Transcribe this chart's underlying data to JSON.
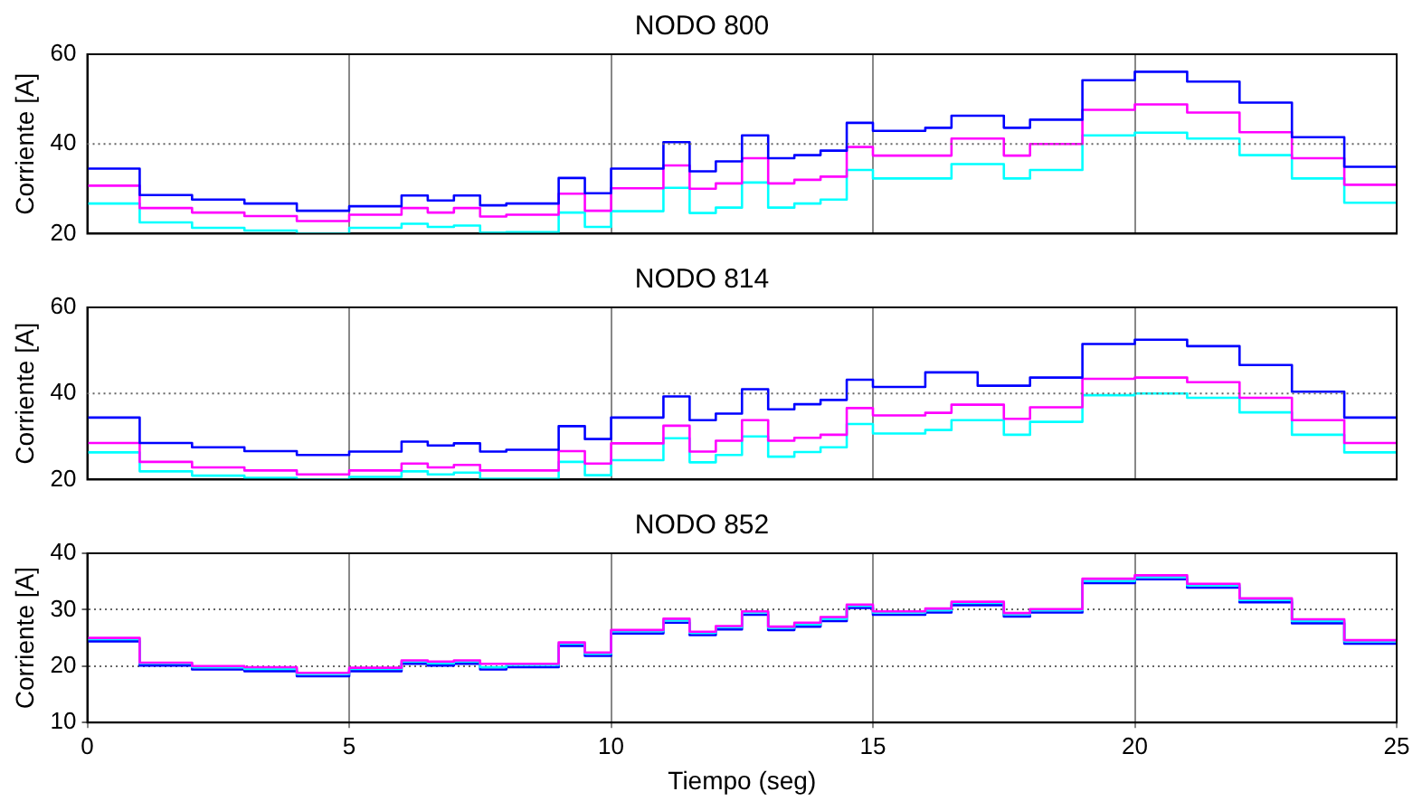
{
  "chart_data": [
    {
      "type": "step",
      "title": "NODO 800",
      "ylabel": "Corriente [A]",
      "x": [
        0,
        1,
        2,
        3,
        4,
        5,
        6,
        6.5,
        7,
        7.5,
        8,
        9,
        9.5,
        10,
        11,
        11.5,
        12,
        12.5,
        13,
        13.5,
        14,
        14.5,
        15,
        16,
        16.5,
        17,
        17.5,
        18,
        19,
        20,
        21,
        22,
        23,
        24,
        25
      ],
      "xlim": [
        0,
        25
      ],
      "xticks": [
        0,
        5,
        10,
        15,
        20,
        25
      ],
      "ylim": [
        20,
        60
      ],
      "yticks": [
        20,
        40,
        60
      ],
      "grid": "x",
      "ref_lines": [
        {
          "axis": "y",
          "value": 40,
          "color": "#666666",
          "line_style": "dotted"
        }
      ],
      "legend": false,
      "tick_labels": "y",
      "series": [
        {
          "color": "#0000ff",
          "values": [
            34.5,
            28.6,
            27.6,
            26.7,
            25.1,
            26.1,
            28.5,
            27.4,
            28.5,
            26.3,
            26.7,
            32.4,
            29,
            34.5,
            40.4,
            33.9,
            36.1,
            41.9,
            36.8,
            37.5,
            38.5,
            44.7,
            42.9,
            43.6,
            46.3,
            46.3,
            43.6,
            45.4,
            54.2,
            56.1,
            53.9,
            49.2,
            41.5,
            34.9,
            34.9
          ]
        },
        {
          "color": "#ff00ff",
          "values": [
            30.7,
            25.7,
            24.7,
            23.9,
            22.8,
            24.2,
            25.7,
            24.7,
            25.7,
            23.8,
            24.2,
            28.9,
            25.1,
            30.1,
            35.2,
            30,
            31.2,
            36.8,
            31.2,
            32,
            32.7,
            39.3,
            37.4,
            37.4,
            41.2,
            41.2,
            37.4,
            40,
            47.6,
            48.8,
            47,
            42.6,
            36.8,
            30.9,
            30.9
          ]
        },
        {
          "color": "#00ffff",
          "values": [
            26.7,
            22.5,
            21.3,
            20.7,
            20,
            21.3,
            22.2,
            21.5,
            21.8,
            20.2,
            20.3,
            24.7,
            21.5,
            25,
            30.2,
            24.6,
            25.8,
            31.4,
            25.8,
            26.7,
            27.6,
            34.2,
            32.3,
            32.3,
            35.5,
            35.5,
            32.3,
            34.2,
            41.9,
            42.5,
            41.2,
            37.5,
            32.3,
            26.9,
            26.9
          ]
        }
      ]
    },
    {
      "type": "step",
      "title": "NODO 814",
      "ylabel": "Corriente [A]",
      "x": [
        0,
        1,
        2,
        3,
        4,
        5,
        6,
        6.5,
        7,
        7.5,
        8,
        9,
        9.5,
        10,
        11,
        11.5,
        12,
        12.5,
        13,
        13.5,
        14,
        14.5,
        15,
        16,
        16.5,
        17,
        17.5,
        18,
        19,
        20,
        21,
        22,
        23,
        24,
        25
      ],
      "xlim": [
        0,
        25
      ],
      "xticks": [
        0,
        5,
        10,
        15,
        20,
        25
      ],
      "ylim": [
        20,
        60
      ],
      "yticks": [
        20,
        40,
        60
      ],
      "grid": "x",
      "ref_lines": [
        {
          "axis": "y",
          "value": 40,
          "color": "#666666",
          "line_style": "dotted"
        }
      ],
      "legend": false,
      "tick_labels": "y",
      "series": [
        {
          "color": "#0000ff",
          "values": [
            34.4,
            28.5,
            27.5,
            26.6,
            25.7,
            26.5,
            28.8,
            27.9,
            28.4,
            26.5,
            26.9,
            32.4,
            29.4,
            34.4,
            39.3,
            33.8,
            35.3,
            41,
            36.3,
            37.5,
            38.5,
            43.2,
            41.5,
            44.9,
            44.9,
            41.8,
            41.8,
            43.7,
            51.5,
            52.5,
            51,
            46.6,
            40.4,
            34.4,
            34.4
          ]
        },
        {
          "color": "#ff00ff",
          "values": [
            28.5,
            24.1,
            22.8,
            22.1,
            21.2,
            22.1,
            23.7,
            22.8,
            23.4,
            22.1,
            22.1,
            26.6,
            23.7,
            28.4,
            32.5,
            26.5,
            29,
            33.8,
            29,
            29.7,
            30.4,
            36.6,
            34.9,
            35.5,
            37.4,
            37.4,
            34.1,
            36.8,
            43.4,
            43.7,
            42.6,
            39,
            33.8,
            28.5,
            28.5
          ]
        },
        {
          "color": "#00ffff",
          "values": [
            26.3,
            21.9,
            20.9,
            20.4,
            20,
            20.6,
            21.9,
            21.2,
            21.6,
            20.2,
            20.2,
            24.1,
            21,
            24.5,
            29.6,
            24,
            25.7,
            30,
            25.3,
            26.4,
            27.5,
            32.9,
            30.7,
            31.5,
            33.8,
            33.8,
            30.4,
            33.4,
            39.6,
            40,
            39,
            35.6,
            30.4,
            26.3,
            26.3
          ]
        }
      ]
    },
    {
      "type": "step",
      "title": "NODO 852",
      "ylabel": "Corriente [A]",
      "xlabel": "Tiempo (seg)",
      "x": [
        0,
        1,
        2,
        3,
        4,
        5,
        6,
        6.5,
        7,
        7.5,
        8,
        9,
        9.5,
        10,
        11,
        11.5,
        12,
        12.5,
        13,
        13.5,
        14,
        14.5,
        15,
        16,
        16.5,
        17,
        17.5,
        18,
        19,
        20,
        21,
        22,
        23,
        24,
        25
      ],
      "xlim": [
        0,
        25
      ],
      "xticks": [
        0,
        5,
        10,
        15,
        20,
        25
      ],
      "ylim": [
        10,
        40
      ],
      "yticks": [
        10,
        20,
        30,
        40
      ],
      "grid": true,
      "legend": false,
      "series": [
        {
          "color": "#ff00ff",
          "values": [
            25,
            20.6,
            20,
            19.8,
            18.8,
            19.7,
            21,
            20.8,
            21,
            20.4,
            20.4,
            24.2,
            22.4,
            26.4,
            28.4,
            26.1,
            27.1,
            29.7,
            27,
            27.7,
            28.7,
            30.9,
            29.7,
            30.2,
            31.4,
            31.4,
            29.4,
            30.1,
            35.5,
            36.1,
            34.6,
            32,
            28.3,
            24.6,
            24.6
          ]
        },
        {
          "color": "#00ffff",
          "values": [
            24.8,
            20.5,
            19.8,
            19.5,
            18.6,
            19.5,
            20.8,
            20.5,
            20.8,
            19.8,
            20.2,
            24,
            22.2,
            26.2,
            28.1,
            25.9,
            26.9,
            29.5,
            26.8,
            27.4,
            28.4,
            30.7,
            29.5,
            29.9,
            31.2,
            31.2,
            29.2,
            29.9,
            35.1,
            35.8,
            34.3,
            31.7,
            28,
            24.4,
            24.4
          ]
        },
        {
          "color": "#0000ff",
          "values": [
            24.4,
            20.1,
            19.4,
            19.1,
            18.2,
            19.1,
            20.4,
            20.1,
            20.4,
            19.4,
            19.8,
            23.6,
            21.8,
            25.8,
            27.7,
            25.5,
            26.5,
            29.1,
            26.4,
            27,
            28,
            30.3,
            29.1,
            29.5,
            30.8,
            30.8,
            28.8,
            29.5,
            34.7,
            35.4,
            33.9,
            31.3,
            27.6,
            24,
            24
          ]
        }
      ]
    }
  ]
}
